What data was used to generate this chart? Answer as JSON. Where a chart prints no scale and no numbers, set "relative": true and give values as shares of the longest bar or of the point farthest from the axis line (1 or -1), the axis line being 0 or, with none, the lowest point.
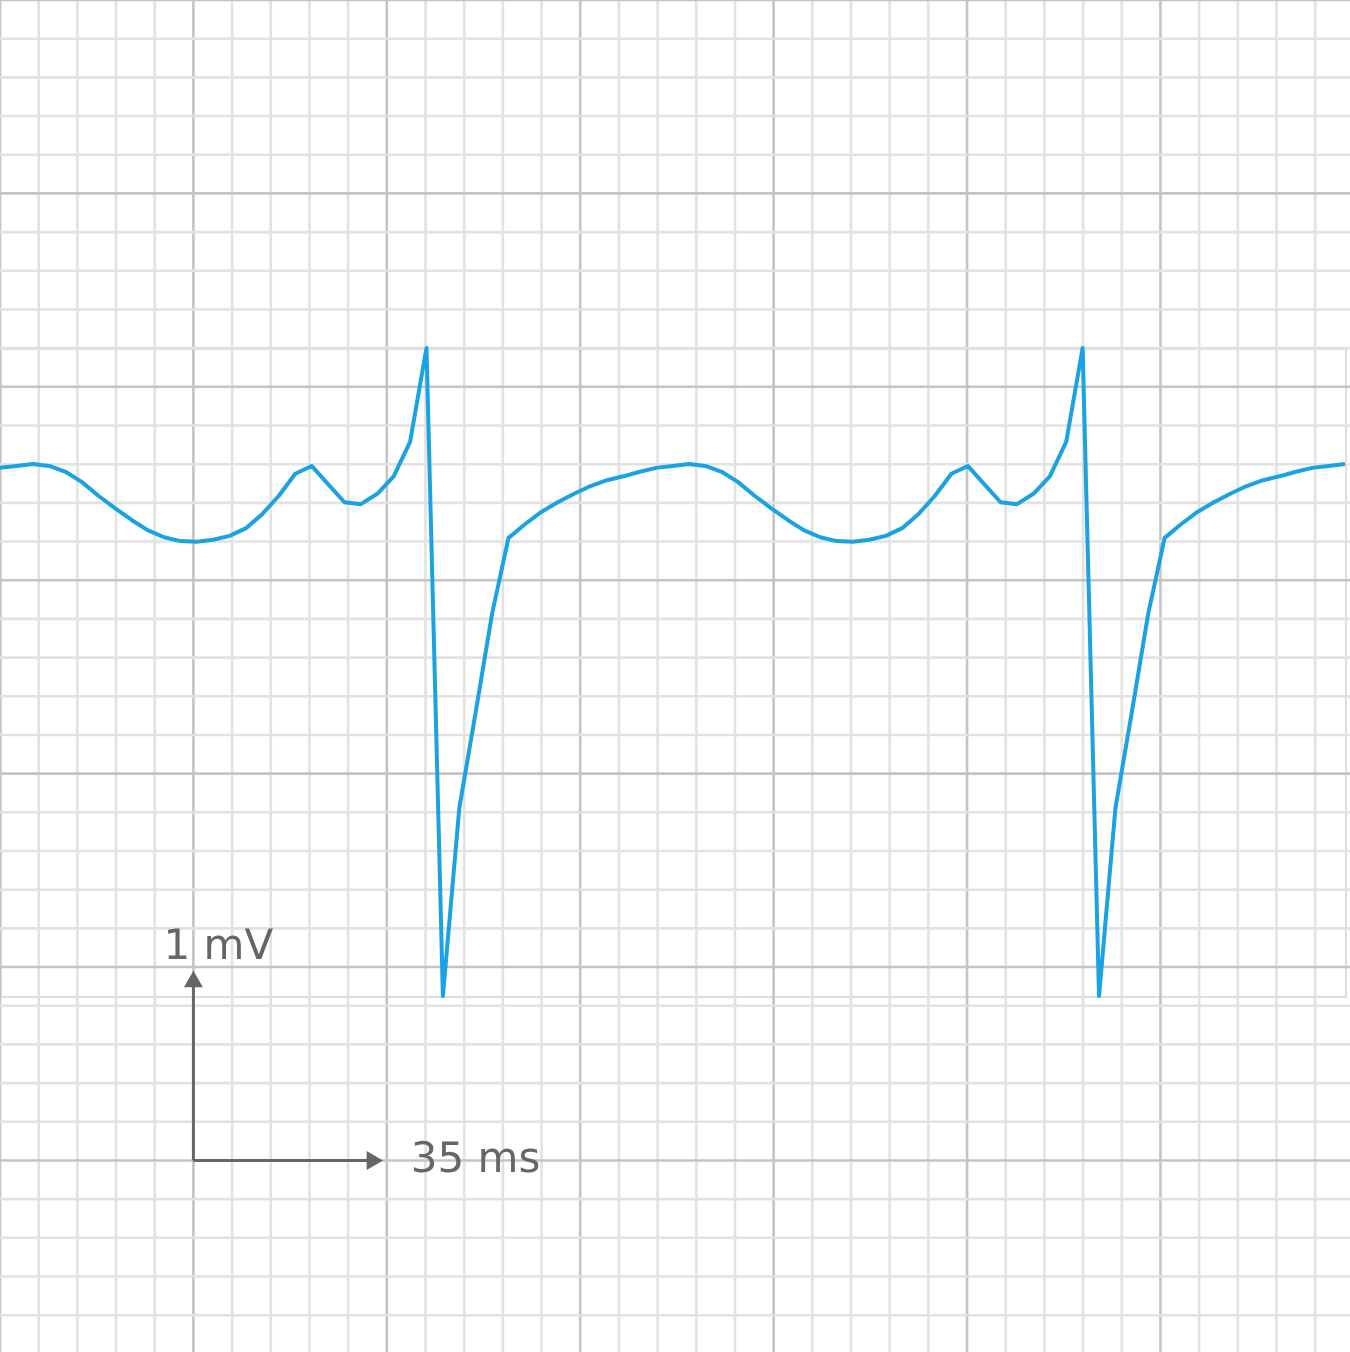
{
  "chart_data": {
    "type": "line",
    "relative": true,
    "grid": true,
    "line_style": "solid",
    "annotations": [
      "1 mV",
      "35 ms"
    ],
    "categories": [
      null,
      null,
      null,
      null,
      null,
      null,
      null,
      null,
      null,
      null,
      null,
      null,
      null,
      null,
      null,
      null,
      null,
      null,
      null,
      null,
      null,
      null,
      null,
      null,
      null,
      null,
      null,
      null,
      null,
      null,
      null,
      null,
      null,
      null,
      null,
      null,
      null,
      null,
      null,
      null,
      null,
      null,
      null,
      null,
      null,
      null,
      null,
      null,
      null,
      null,
      null,
      null,
      null,
      null,
      null,
      null,
      null,
      null,
      null,
      null,
      null,
      null,
      null,
      null,
      null,
      null,
      null,
      null,
      null,
      null,
      null,
      null,
      null,
      null,
      null,
      null,
      null,
      null,
      null,
      null,
      null,
      null,
      null
    ],
    "series": [
      {
        "color": "#1aa3e0",
        "values": [
          0.815,
          0.818,
          0.821,
          0.818,
          0.809,
          0.793,
          0.772,
          0.753,
          0.735,
          0.719,
          0.708,
          0.702,
          0.701,
          0.704,
          0.71,
          0.722,
          0.744,
          0.772,
          0.806,
          0.818,
          0.79,
          0.762,
          0.759,
          0.775,
          0.802,
          0.855,
          1,
          0,
          0.29,
          0.438,
          0.59,
          0.707,
          0.728,
          0.747,
          0.762,
          0.775,
          0.787,
          0.796,
          0.802,
          0.809,
          0.815,
          0.818,
          0.821,
          0.818,
          0.809,
          0.793,
          0.772,
          0.753,
          0.735,
          0.719,
          0.708,
          0.702,
          0.701,
          0.704,
          0.71,
          0.722,
          0.744,
          0.772,
          0.806,
          0.818,
          0.79,
          0.762,
          0.759,
          0.775,
          0.802,
          0.855,
          1,
          0,
          0.29,
          0.438,
          0.59,
          0.707,
          0.728,
          0.747,
          0.762,
          0.775,
          0.787,
          0.796,
          0.802,
          0.809,
          0.815,
          0.818,
          0.821
        ]
      }
    ]
  }
}
